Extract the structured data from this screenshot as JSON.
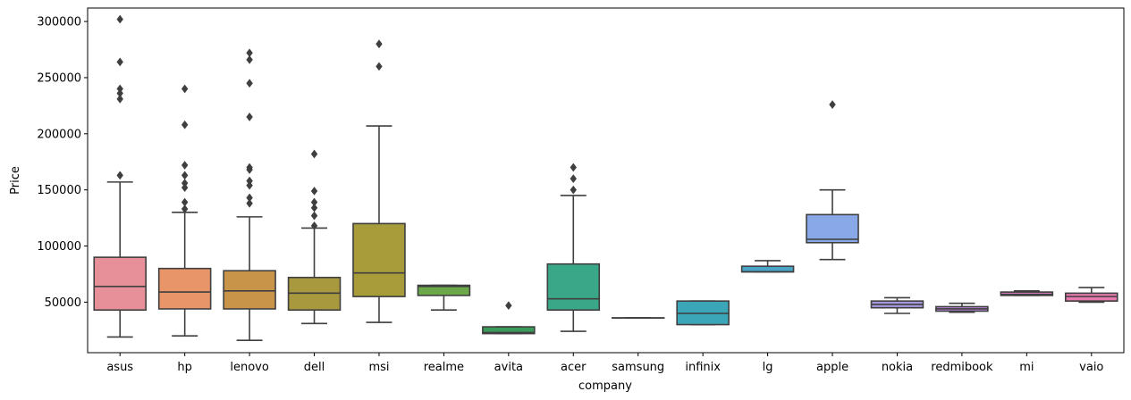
{
  "chart_data": {
    "type": "box",
    "xlabel": "company",
    "ylabel": "Price",
    "ylim": [
      5000,
      312000
    ],
    "yticks": [
      50000,
      100000,
      150000,
      200000,
      250000,
      300000
    ],
    "ytick_labels": [
      "50000",
      "100000",
      "150000",
      "200000",
      "250000",
      "300000"
    ],
    "categories": [
      "asus",
      "hp",
      "lenovo",
      "dell",
      "msi",
      "realme",
      "avita",
      "acer",
      "samsung",
      "infinix",
      "lg",
      "apple",
      "nokia",
      "redmibook",
      "mi",
      "vaio"
    ],
    "colors": [
      "#e8909a",
      "#e8956a",
      "#c8944a",
      "#a8993e",
      "#a89c3a",
      "#6aa84a",
      "#3a9a5a",
      "#3aa888",
      "#3aa4a0",
      "#3aa6b8",
      "#4aa4c8",
      "#88a8e8",
      "#a898e0",
      "#c088e0",
      "#e080c8",
      "#e878b0"
    ],
    "boxes": [
      {
        "whislo": 19000,
        "q1": 43000,
        "med": 64000,
        "q3": 90000,
        "whishi": 157000,
        "fliers": [
          302000,
          264000,
          240000,
          236000,
          231000,
          163000
        ]
      },
      {
        "whislo": 20000,
        "q1": 44000,
        "med": 59000,
        "q3": 80000,
        "whishi": 130000,
        "fliers": [
          240000,
          208000,
          172000,
          163000,
          156000,
          152000,
          139000,
          133000
        ]
      },
      {
        "whislo": 16000,
        "q1": 44000,
        "med": 60000,
        "q3": 78000,
        "whishi": 126000,
        "fliers": [
          272000,
          266000,
          245000,
          215000,
          170000,
          168000,
          158000,
          154000,
          143000,
          138000
        ]
      },
      {
        "whislo": 31000,
        "q1": 43000,
        "med": 58000,
        "q3": 72000,
        "whishi": 116000,
        "fliers": [
          182000,
          149000,
          139000,
          134000,
          127000,
          118000
        ]
      },
      {
        "whislo": 32000,
        "q1": 55000,
        "med": 76000,
        "q3": 120000,
        "whishi": 207000,
        "fliers": [
          280000,
          260000
        ]
      },
      {
        "whislo": 43000,
        "q1": 56000,
        "med": 64000,
        "q3": 65000,
        "whishi": 65000,
        "fliers": []
      },
      {
        "whislo": 22000,
        "q1": 22000,
        "med": 23000,
        "q3": 28000,
        "whishi": 28000,
        "fliers": [
          47000
        ]
      },
      {
        "whislo": 24000,
        "q1": 43000,
        "med": 53000,
        "q3": 84000,
        "whishi": 145000,
        "fliers": [
          170000,
          160000,
          150000
        ]
      },
      {
        "whislo": 36000,
        "q1": 36000,
        "med": 36000,
        "q3": 36000,
        "whishi": 36000,
        "fliers": []
      },
      {
        "whislo": 30000,
        "q1": 30000,
        "med": 40000,
        "q3": 51000,
        "whishi": 51000,
        "fliers": []
      },
      {
        "whislo": 77000,
        "q1": 77000,
        "med": 77000,
        "q3": 82000,
        "whishi": 87000,
        "fliers": []
      },
      {
        "whislo": 88000,
        "q1": 103000,
        "med": 106000,
        "q3": 128000,
        "whishi": 150000,
        "fliers": [
          226000
        ]
      },
      {
        "whislo": 40000,
        "q1": 45000,
        "med": 48000,
        "q3": 51000,
        "whishi": 54000,
        "fliers": []
      },
      {
        "whislo": 41000,
        "q1": 42000,
        "med": 44000,
        "q3": 46000,
        "whishi": 49000,
        "fliers": []
      },
      {
        "whislo": 56000,
        "q1": 56000,
        "med": 57000,
        "q3": 59000,
        "whishi": 60000,
        "fliers": []
      },
      {
        "whislo": 50000,
        "q1": 51000,
        "med": 55000,
        "q3": 58000,
        "whishi": 63000,
        "fliers": []
      }
    ]
  }
}
